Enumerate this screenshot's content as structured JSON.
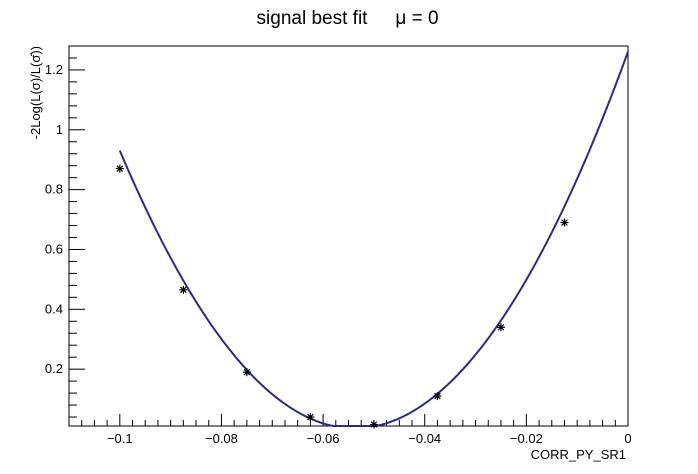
{
  "chart_data": {
    "type": "scatter",
    "title": "signal best fit",
    "subtitle": "μ = 0",
    "xlabel": "CORR_PY_SR1",
    "ylabel": "-2Log(L(σ)/L(σ̂))",
    "xlim": [
      -0.11,
      0.0
    ],
    "ylim": [
      0.01,
      1.28
    ],
    "x_ticks": [
      -0.1,
      -0.08,
      -0.06,
      -0.04,
      -0.02,
      0
    ],
    "x_tick_labels": [
      "−0.1",
      "−0.08",
      "−0.06",
      "−0.04",
      "−0.02",
      "0"
    ],
    "y_ticks": [
      0.2,
      0.4,
      0.6,
      0.8,
      1.0,
      1.2
    ],
    "y_tick_labels": [
      "0.2",
      "0.4",
      "0.6",
      "0.8",
      "1",
      "1.2"
    ],
    "grid": false,
    "legend": "none",
    "series": [
      {
        "marker": "asterisk",
        "x": [
          -0.1,
          -0.0875,
          -0.075,
          -0.0625,
          -0.05,
          -0.0375,
          -0.025,
          -0.0125
        ],
        "y": [
          0.87,
          0.465,
          0.19,
          0.04,
          0.015,
          0.11,
          0.34,
          0.69
        ]
      }
    ],
    "fit_curve": {
      "x_min": -0.1,
      "x_max": 0.0,
      "coefficients": {
        "a": 435,
        "x0": -0.0538,
        "c": 0.002
      },
      "color": "#2a2a8c"
    }
  }
}
